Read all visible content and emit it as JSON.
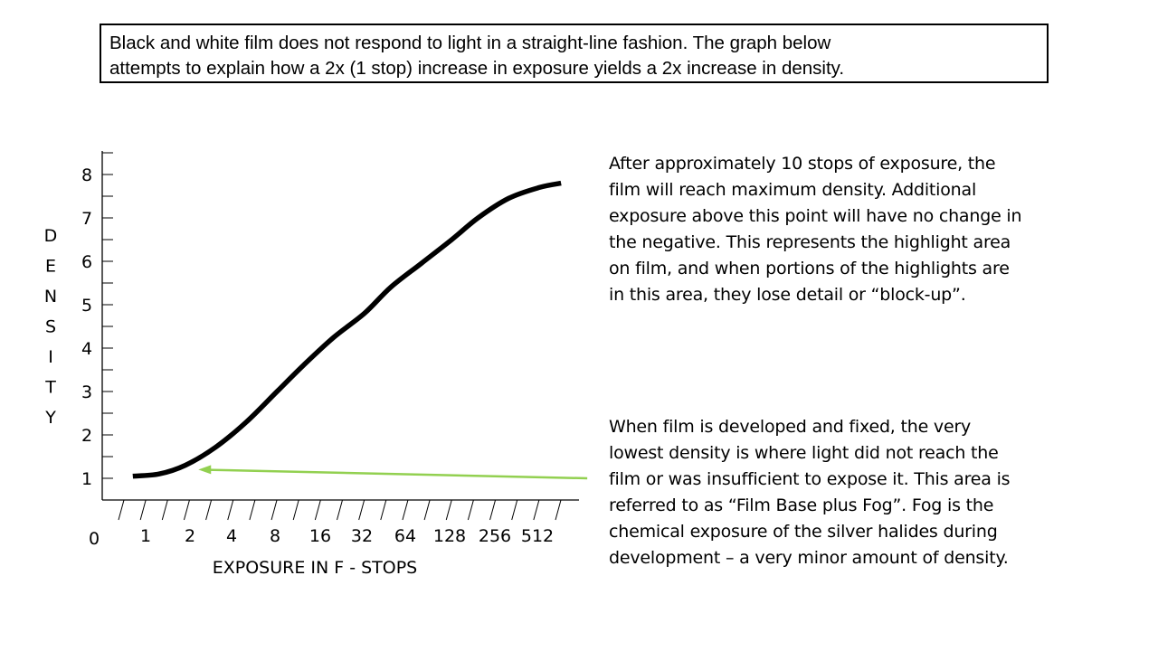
{
  "title_lines": [
    "Black and white film does not respond to light in a straight-line fashion.  The graph below",
    "attempts to explain how a 2x (1 stop) increase in exposure yields a 2x increase in density."
  ],
  "chart_data": {
    "type": "line",
    "xlabel": "EXPOSURE IN F - STOPS",
    "ylabel": "DENSITY",
    "ylabel_letters": [
      "D",
      "E",
      "N",
      "S",
      "I",
      "T",
      "Y"
    ],
    "x_tick_labels": [
      "0",
      "1",
      "2",
      "4",
      "8",
      "16",
      "32",
      "64",
      "128",
      "256",
      "512"
    ],
    "y_tick_labels": [
      "1",
      "2",
      "3",
      "4",
      "5",
      "6",
      "7",
      "8"
    ],
    "ylim": [
      0.5,
      8.5
    ],
    "xlim": [
      0,
      11
    ],
    "series": [
      {
        "x": [
          0.7,
          1.3,
          1.9,
          2.6,
          3.3,
          4.0,
          4.6,
          5.3,
          6.0,
          6.6,
          7.3,
          8.0,
          8.6,
          9.3,
          10.0,
          10.5
        ],
        "y": [
          1.05,
          1.1,
          1.3,
          1.72,
          2.3,
          3.0,
          3.6,
          4.25,
          4.8,
          5.4,
          5.95,
          6.5,
          7.0,
          7.45,
          7.7,
          7.8
        ],
        "color": "#000000"
      }
    ],
    "arrow": {
      "from": [
        11.1,
        1.0
      ],
      "to": [
        2.2,
        1.2
      ],
      "color": "#92d050"
    },
    "grid": false
  },
  "notes": {
    "top": [
      "After approximately 10 stops of exposure, the",
      "film will reach maximum density.  Additional",
      "exposure above this point will have no change in",
      "the negative.  This represents the highlight area",
      "on film, and when portions of the highlights are",
      "in this area, they lose detail or “block-up”."
    ],
    "bottom": [
      "When film is developed and fixed, the very",
      "lowest density is where light did not reach the",
      "film or was insufficient to expose it.  This area is",
      "referred to as “Film Base plus Fog”.   Fog is the",
      "chemical exposure of the silver halides during",
      "development – a very minor amount of density."
    ]
  }
}
